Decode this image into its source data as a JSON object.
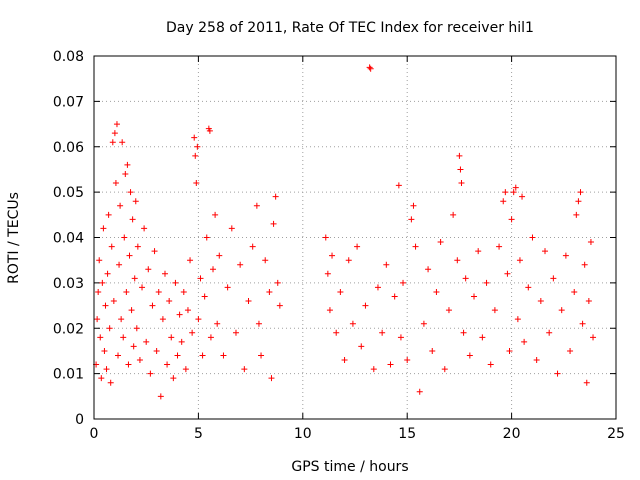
{
  "chart_data": {
    "type": "scatter",
    "title": "Day 258 of 2011, Rate Of TEC Index for receiver hil1",
    "xlabel": "GPS time / hours",
    "ylabel": "ROTI / TECUs",
    "xlim": [
      0,
      25
    ],
    "ylim": [
      0,
      0.08
    ],
    "x_ticks": [
      0,
      5,
      10,
      15,
      20,
      25
    ],
    "y_ticks": [
      0,
      0.01,
      0.02,
      0.03,
      0.04,
      0.05,
      0.06,
      0.07,
      0.08
    ],
    "x_tick_labels": [
      "0",
      "5",
      "10",
      "15",
      "20",
      "25"
    ],
    "y_tick_labels": [
      "0",
      "0.01",
      "0.02",
      "0.03",
      "0.04",
      "0.05",
      "0.06",
      "0.07",
      "0.08"
    ],
    "grid": true,
    "marker": "plus",
    "color": "#ff0000",
    "series": [
      {
        "values": [
          [
            0.1,
            0.012
          ],
          [
            0.15,
            0.022
          ],
          [
            0.2,
            0.028
          ],
          [
            0.25,
            0.035
          ],
          [
            0.3,
            0.018
          ],
          [
            0.35,
            0.009
          ],
          [
            0.4,
            0.03
          ],
          [
            0.45,
            0.042
          ],
          [
            0.5,
            0.015
          ],
          [
            0.55,
            0.025
          ],
          [
            0.6,
            0.011
          ],
          [
            0.65,
            0.032
          ],
          [
            0.7,
            0.045
          ],
          [
            0.75,
            0.02
          ],
          [
            0.8,
            0.008
          ],
          [
            0.85,
            0.038
          ],
          [
            0.9,
            0.061
          ],
          [
            0.95,
            0.026
          ],
          [
            1.0,
            0.063
          ],
          [
            1.05,
            0.052
          ],
          [
            1.1,
            0.065
          ],
          [
            1.15,
            0.014
          ],
          [
            1.2,
            0.034
          ],
          [
            1.25,
            0.047
          ],
          [
            1.3,
            0.022
          ],
          [
            1.35,
            0.061
          ],
          [
            1.4,
            0.018
          ],
          [
            1.45,
            0.04
          ],
          [
            1.5,
            0.054
          ],
          [
            1.55,
            0.028
          ],
          [
            1.6,
            0.056
          ],
          [
            1.65,
            0.012
          ],
          [
            1.7,
            0.036
          ],
          [
            1.75,
            0.05
          ],
          [
            1.8,
            0.024
          ],
          [
            1.85,
            0.044
          ],
          [
            1.9,
            0.016
          ],
          [
            1.95,
            0.031
          ],
          [
            2.0,
            0.048
          ],
          [
            2.05,
            0.02
          ],
          [
            2.1,
            0.038
          ],
          [
            2.2,
            0.013
          ],
          [
            2.3,
            0.029
          ],
          [
            2.4,
            0.042
          ],
          [
            2.5,
            0.017
          ],
          [
            2.6,
            0.033
          ],
          [
            2.7,
            0.01
          ],
          [
            2.8,
            0.025
          ],
          [
            2.9,
            0.037
          ],
          [
            3.0,
            0.015
          ],
          [
            3.1,
            0.028
          ],
          [
            3.2,
            0.005
          ],
          [
            3.3,
            0.022
          ],
          [
            3.4,
            0.032
          ],
          [
            3.5,
            0.012
          ],
          [
            3.6,
            0.026
          ],
          [
            3.7,
            0.018
          ],
          [
            3.8,
            0.009
          ],
          [
            3.9,
            0.03
          ],
          [
            4.0,
            0.014
          ],
          [
            4.1,
            0.023
          ],
          [
            4.2,
            0.017
          ],
          [
            4.3,
            0.028
          ],
          [
            4.4,
            0.011
          ],
          [
            4.5,
            0.024
          ],
          [
            4.6,
            0.035
          ],
          [
            4.7,
            0.019
          ],
          [
            4.8,
            0.062
          ],
          [
            4.85,
            0.058
          ],
          [
            4.9,
            0.052
          ],
          [
            4.95,
            0.06
          ],
          [
            5.0,
            0.022
          ],
          [
            5.1,
            0.031
          ],
          [
            5.2,
            0.014
          ],
          [
            5.3,
            0.027
          ],
          [
            5.4,
            0.04
          ],
          [
            5.5,
            0.064
          ],
          [
            5.55,
            0.0635
          ],
          [
            5.6,
            0.018
          ],
          [
            5.7,
            0.033
          ],
          [
            5.8,
            0.045
          ],
          [
            5.9,
            0.021
          ],
          [
            6.0,
            0.036
          ],
          [
            6.2,
            0.014
          ],
          [
            6.4,
            0.029
          ],
          [
            6.6,
            0.042
          ],
          [
            6.8,
            0.019
          ],
          [
            7.0,
            0.034
          ],
          [
            7.2,
            0.011
          ],
          [
            7.4,
            0.026
          ],
          [
            7.6,
            0.038
          ],
          [
            7.8,
            0.047
          ],
          [
            7.9,
            0.021
          ],
          [
            8.0,
            0.014
          ],
          [
            8.2,
            0.035
          ],
          [
            8.4,
            0.028
          ],
          [
            8.5,
            0.009
          ],
          [
            8.6,
            0.043
          ],
          [
            8.7,
            0.049
          ],
          [
            8.8,
            0.03
          ],
          [
            8.9,
            0.025
          ],
          [
            11.1,
            0.04
          ],
          [
            11.2,
            0.032
          ],
          [
            11.3,
            0.024
          ],
          [
            11.4,
            0.036
          ],
          [
            11.6,
            0.019
          ],
          [
            11.8,
            0.028
          ],
          [
            12.0,
            0.013
          ],
          [
            12.2,
            0.035
          ],
          [
            12.4,
            0.021
          ],
          [
            12.6,
            0.038
          ],
          [
            12.8,
            0.016
          ],
          [
            13.0,
            0.025
          ],
          [
            13.2,
            0.0775
          ],
          [
            13.25,
            0.0772
          ],
          [
            13.4,
            0.011
          ],
          [
            13.6,
            0.029
          ],
          [
            13.8,
            0.019
          ],
          [
            14.0,
            0.034
          ],
          [
            14.2,
            0.012
          ],
          [
            14.4,
            0.027
          ],
          [
            14.6,
            0.0515
          ],
          [
            14.7,
            0.018
          ],
          [
            14.8,
            0.03
          ],
          [
            15.0,
            0.013
          ],
          [
            15.2,
            0.044
          ],
          [
            15.3,
            0.047
          ],
          [
            15.4,
            0.038
          ],
          [
            15.6,
            0.006
          ],
          [
            15.8,
            0.021
          ],
          [
            16.0,
            0.033
          ],
          [
            16.2,
            0.015
          ],
          [
            16.4,
            0.028
          ],
          [
            16.6,
            0.039
          ],
          [
            16.8,
            0.011
          ],
          [
            17.0,
            0.024
          ],
          [
            17.2,
            0.045
          ],
          [
            17.4,
            0.035
          ],
          [
            17.5,
            0.058
          ],
          [
            17.55,
            0.055
          ],
          [
            17.6,
            0.052
          ],
          [
            17.7,
            0.019
          ],
          [
            17.8,
            0.031
          ],
          [
            18.0,
            0.014
          ],
          [
            18.2,
            0.027
          ],
          [
            18.4,
            0.037
          ],
          [
            18.6,
            0.018
          ],
          [
            18.8,
            0.03
          ],
          [
            19.0,
            0.012
          ],
          [
            19.2,
            0.024
          ],
          [
            19.4,
            0.038
          ],
          [
            19.6,
            0.048
          ],
          [
            19.7,
            0.05
          ],
          [
            19.8,
            0.032
          ],
          [
            19.9,
            0.015
          ],
          [
            20.0,
            0.044
          ],
          [
            20.1,
            0.05
          ],
          [
            20.2,
            0.051
          ],
          [
            20.3,
            0.022
          ],
          [
            20.4,
            0.035
          ],
          [
            20.5,
            0.049
          ],
          [
            20.6,
            0.017
          ],
          [
            20.8,
            0.029
          ],
          [
            21.0,
            0.04
          ],
          [
            21.2,
            0.013
          ],
          [
            21.4,
            0.026
          ],
          [
            21.6,
            0.037
          ],
          [
            21.8,
            0.019
          ],
          [
            22.0,
            0.031
          ],
          [
            22.2,
            0.01
          ],
          [
            22.4,
            0.024
          ],
          [
            22.6,
            0.036
          ],
          [
            22.8,
            0.015
          ],
          [
            23.0,
            0.028
          ],
          [
            23.1,
            0.045
          ],
          [
            23.2,
            0.048
          ],
          [
            23.3,
            0.05
          ],
          [
            23.4,
            0.021
          ],
          [
            23.5,
            0.034
          ],
          [
            23.6,
            0.008
          ],
          [
            23.7,
            0.026
          ],
          [
            23.8,
            0.039
          ],
          [
            23.9,
            0.018
          ]
        ]
      }
    ]
  }
}
